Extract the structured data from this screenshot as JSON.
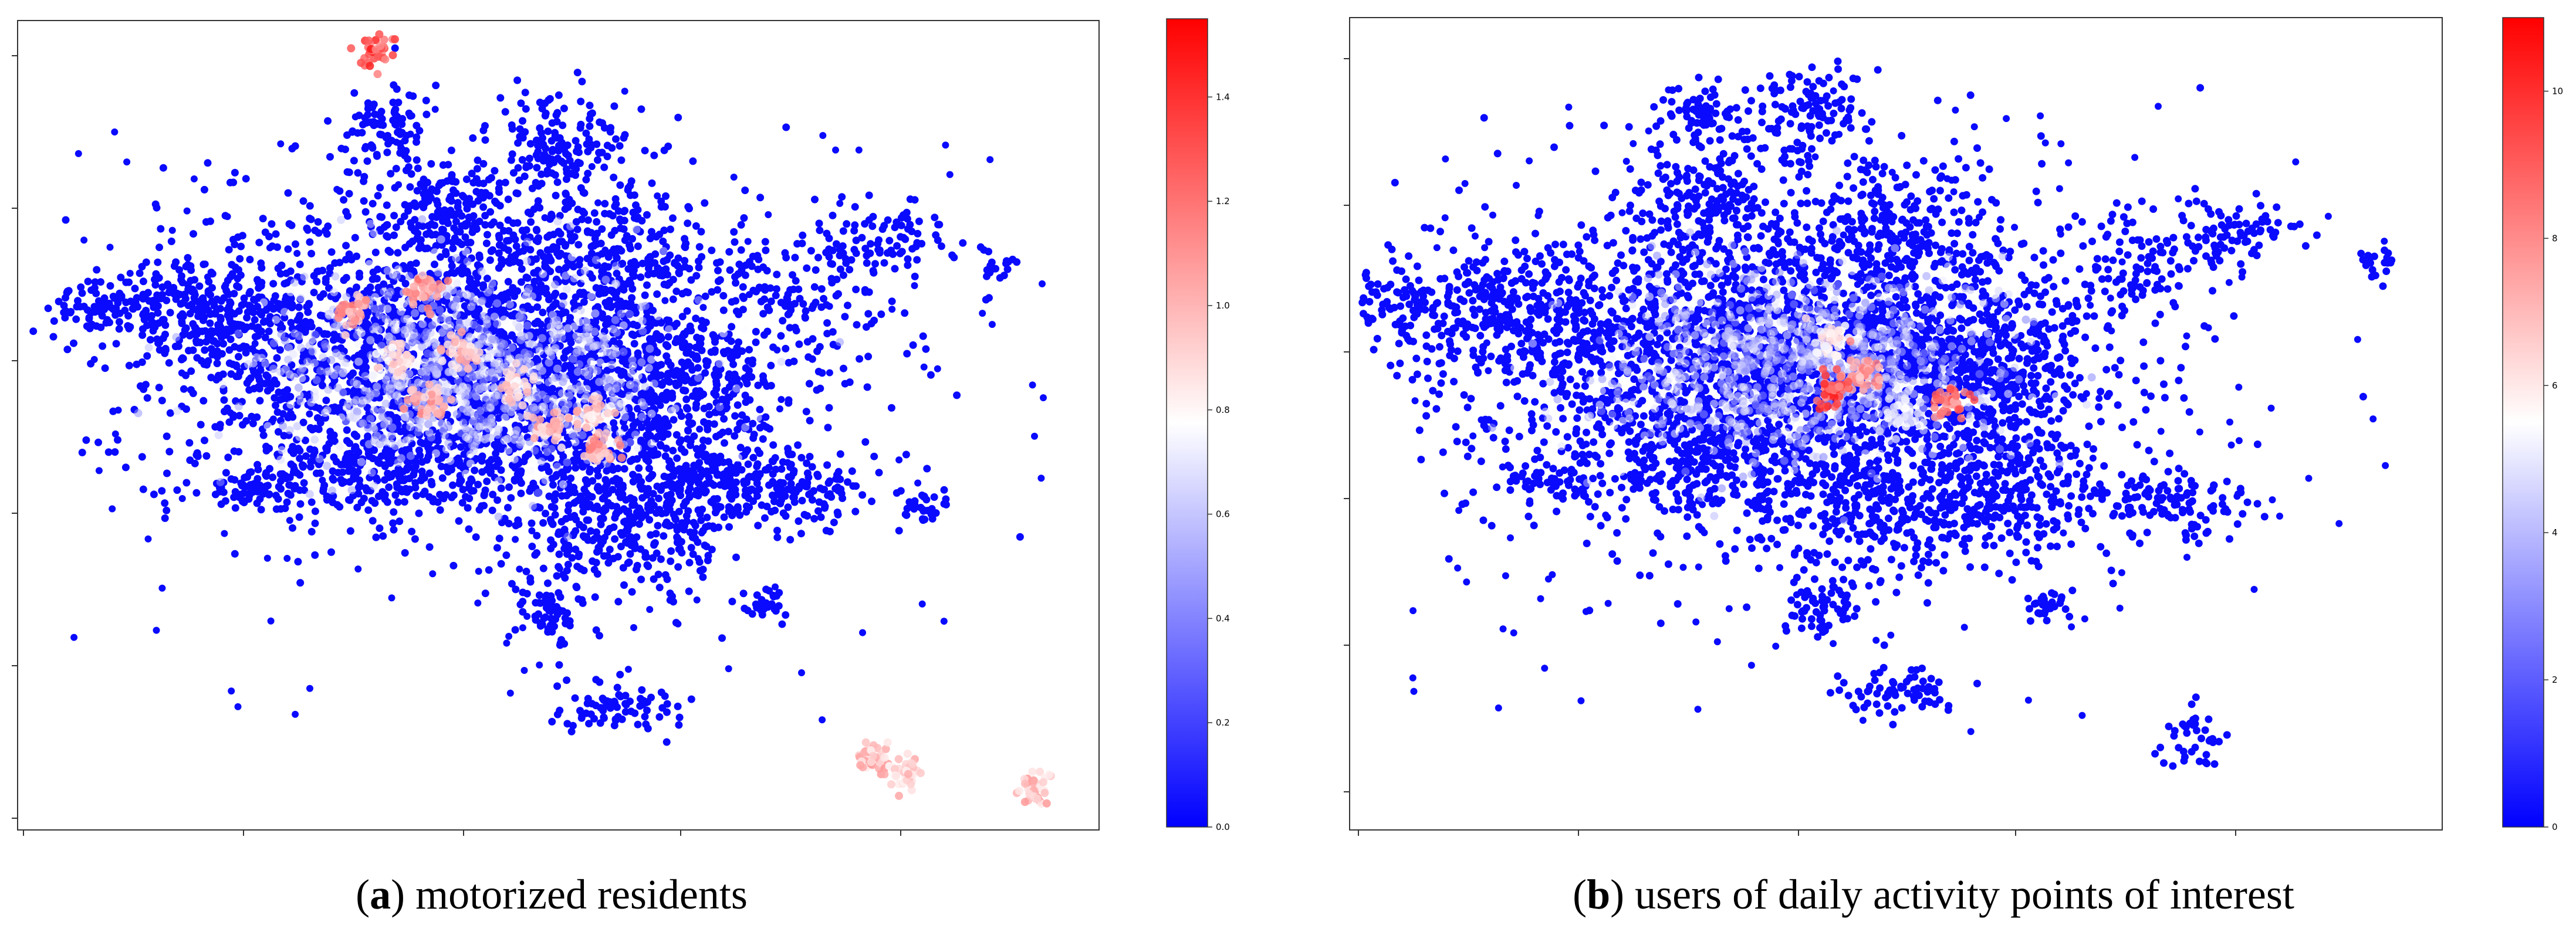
{
  "chart_data": [
    {
      "type": "scatter",
      "panel": "a",
      "caption_label": "a",
      "caption_text": "motorized residents",
      "colormap": [
        "#0000ff",
        "#ffffff",
        "#ff0000"
      ],
      "colorbar": {
        "min": 0.0,
        "max": 1.55,
        "ticks": [
          "0.0",
          "0.2",
          "0.4",
          "0.6",
          "0.8",
          "1.0",
          "1.2",
          "1.4"
        ],
        "tick_values": [
          0.0,
          0.2,
          0.4,
          0.6,
          0.8,
          1.0,
          1.2,
          1.4
        ]
      },
      "hotspots": [
        {
          "x": 0.31,
          "y": 0.36,
          "value": 1.2
        },
        {
          "x": 0.38,
          "y": 0.33,
          "value": 1.25
        },
        {
          "x": 0.41,
          "y": 0.41,
          "value": 1.1
        },
        {
          "x": 0.38,
          "y": 0.47,
          "value": 1.15
        },
        {
          "x": 0.46,
          "y": 0.45,
          "value": 1.0
        },
        {
          "x": 0.53,
          "y": 0.49,
          "value": 1.05
        },
        {
          "x": 0.54,
          "y": 0.53,
          "value": 1.2
        },
        {
          "x": 0.49,
          "y": 0.5,
          "value": 1.1
        },
        {
          "x": 0.35,
          "y": 0.42,
          "value": 1.0
        },
        {
          "x": 0.79,
          "y": 0.91,
          "value": 1.1
        },
        {
          "x": 0.82,
          "y": 0.93,
          "value": 1.05
        },
        {
          "x": 0.94,
          "y": 0.95,
          "value": 1.1
        },
        {
          "x": 0.33,
          "y": 0.04,
          "value": 1.5
        }
      ]
    },
    {
      "type": "scatter",
      "panel": "b",
      "caption_label": "b",
      "caption_text": "users of daily activity points of interest",
      "colormap": [
        "#0000ff",
        "#ffffff",
        "#ff0000"
      ],
      "colorbar": {
        "min": 0,
        "max": 11,
        "ticks": [
          "0",
          "2",
          "4",
          "6",
          "8",
          "10"
        ],
        "tick_values": [
          0,
          2,
          4,
          6,
          8,
          10
        ]
      },
      "hotspots": [
        {
          "x": 0.44,
          "y": 0.4,
          "value": 6.5
        },
        {
          "x": 0.47,
          "y": 0.44,
          "value": 8.5
        },
        {
          "x": 0.44,
          "y": 0.46,
          "value": 10.5
        },
        {
          "x": 0.55,
          "y": 0.47,
          "value": 9.5
        },
        {
          "x": 0.51,
          "y": 0.49,
          "value": 5.5
        }
      ]
    }
  ]
}
